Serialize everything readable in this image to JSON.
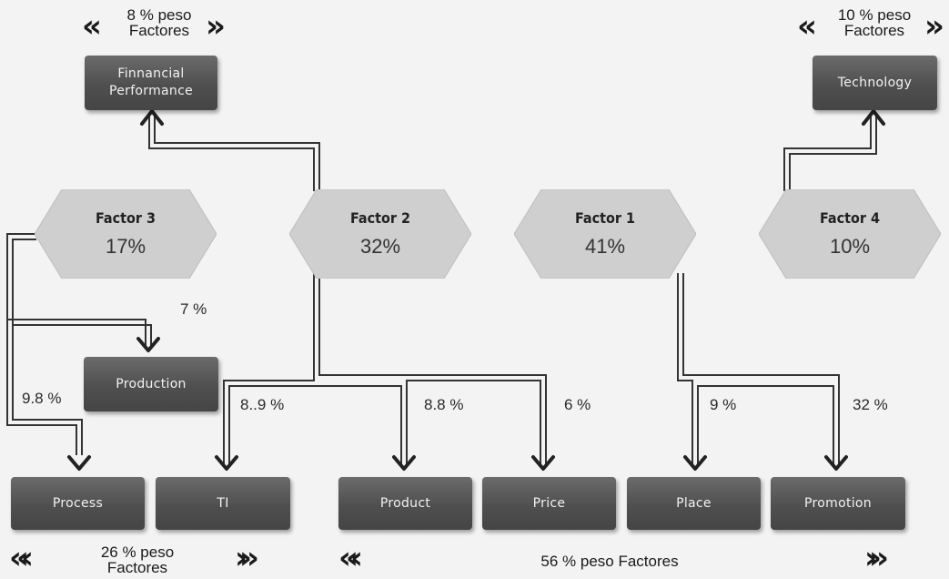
{
  "factors": {
    "f3": {
      "name": "Factor 3",
      "value": "17%"
    },
    "f2": {
      "name": "Factor 2",
      "value": "32%"
    },
    "f1": {
      "name": "Factor 1",
      "value": "41%"
    },
    "f4": {
      "name": "Factor 4",
      "value": "10%"
    }
  },
  "boxes": {
    "financial": "Finnancial Performance",
    "technology": "Technology",
    "production": "Production",
    "process": "Process",
    "ti": "TI",
    "product": "Product",
    "price": "Price",
    "place": "Place",
    "promotion": "Promotion"
  },
  "percentages": {
    "production": "7 %",
    "process": "9.8 %",
    "ti": "8..9 %",
    "product": "8.8 %",
    "price": "6 %",
    "place": "9 %",
    "promotion": "32 %"
  },
  "groups": {
    "top_left": {
      "line1": "8 % peso",
      "line2": "Factores"
    },
    "top_right": {
      "line1": "10 % peso",
      "line2": "Factores"
    },
    "bottom_left": {
      "line1": "26 % peso",
      "line2": "Factores"
    },
    "bottom_right": "56 % peso Factores"
  },
  "icons": {
    "chevron_left": "«",
    "chevron_right": "»",
    "triple_left": "«‹",
    "triple_right": "›»"
  },
  "colors": {
    "box": "#545454",
    "hexagon": "#cfcfcf",
    "connector": "#333333"
  }
}
